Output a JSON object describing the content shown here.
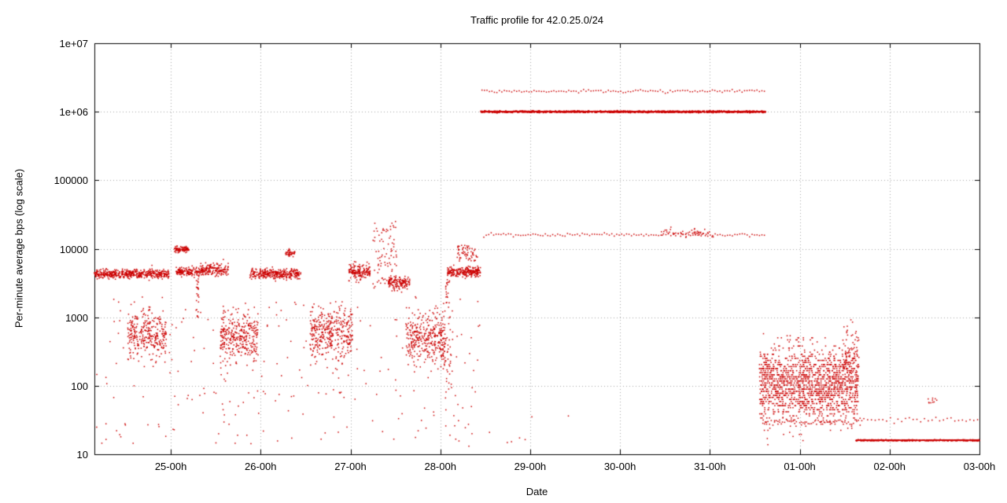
{
  "chart_data": {
    "type": "scatter",
    "title": "Traffic profile for 42.0.25.0/24",
    "xlabel": "Date",
    "ylabel": "Per-minute average bps (log scale)",
    "grid": "dotted",
    "legend": "none",
    "point_color": "#cc0000",
    "grid_color": "#a8a8a8",
    "border_color": "#000000",
    "background_color": "#ffffff",
    "y_axis": {
      "scale": "log",
      "min": 10,
      "max": 10000000,
      "ticks": [
        {
          "v": 10,
          "label": "10"
        },
        {
          "v": 100,
          "label": "100"
        },
        {
          "v": 1000,
          "label": "1000"
        },
        {
          "v": 10000,
          "label": "10000"
        },
        {
          "v": 100000,
          "label": "100000"
        },
        {
          "v": 1000000,
          "label": "1e+06"
        },
        {
          "v": 10000000,
          "label": "1e+07"
        }
      ]
    },
    "x_axis": {
      "unit": "days-from-25-00h",
      "min": -0.85,
      "max": 9.0,
      "ticks": [
        {
          "t": 0,
          "label": "25-00h"
        },
        {
          "t": 1,
          "label": "26-00h"
        },
        {
          "t": 2,
          "label": "27-00h"
        },
        {
          "t": 3,
          "label": "28-00h"
        },
        {
          "t": 4,
          "label": "29-00h"
        },
        {
          "t": 5,
          "label": "30-00h"
        },
        {
          "t": 6,
          "label": "31-00h"
        },
        {
          "t": 7,
          "label": "01-00h"
        },
        {
          "t": 8,
          "label": "02-00h"
        },
        {
          "t": 9,
          "label": "03-00h"
        }
      ]
    },
    "segments": [
      {
        "name": "band-4300-day1",
        "t0": -0.85,
        "t1": -0.02,
        "n": 480,
        "dist": "normal",
        "log_mean": 3.633,
        "log_sd": 0.032,
        "spacing": "random"
      },
      {
        "name": "blob-10k-day2",
        "t0": 0.04,
        "t1": 0.2,
        "n": 90,
        "dist": "normal",
        "log_mean": 3.991,
        "log_sd": 0.022,
        "spacing": "random"
      },
      {
        "name": "band-4600-day2a",
        "t0": 0.06,
        "t1": 0.32,
        "n": 150,
        "dist": "normal",
        "log_mean": 3.663,
        "log_sd": 0.03,
        "spacing": "random"
      },
      {
        "name": "band-4900-day2b",
        "t0": 0.32,
        "t1": 0.64,
        "n": 180,
        "dist": "normal",
        "log_mean": 3.69,
        "log_sd": 0.045,
        "spacing": "random"
      },
      {
        "name": "band-4300-day3",
        "t0": 0.88,
        "t1": 1.45,
        "n": 320,
        "dist": "normal",
        "log_mean": 3.633,
        "log_sd": 0.038,
        "spacing": "random"
      },
      {
        "name": "blob-9k-day3",
        "t0": 1.27,
        "t1": 1.38,
        "n": 40,
        "dist": "normal",
        "log_mean": 3.944,
        "log_sd": 0.028,
        "spacing": "random"
      },
      {
        "name": "band-4600-day4a",
        "t0": 1.98,
        "t1": 2.22,
        "n": 160,
        "dist": "normal",
        "log_mean": 3.663,
        "log_sd": 0.065,
        "spacing": "random"
      },
      {
        "name": "spike-cluster-25k-day4",
        "t0": 2.25,
        "t1": 2.52,
        "n": 90,
        "dist": "uniform",
        "log_min": 3.42,
        "log_max": 4.4,
        "spacing": "random"
      },
      {
        "name": "band-3200-day4b",
        "t0": 2.42,
        "t1": 2.66,
        "n": 140,
        "dist": "normal",
        "log_mean": 3.505,
        "log_sd": 0.045,
        "spacing": "random"
      },
      {
        "name": "band-4600-day5",
        "t0": 3.08,
        "t1": 3.45,
        "n": 240,
        "dist": "normal",
        "log_mean": 3.663,
        "log_sd": 0.038,
        "spacing": "random"
      },
      {
        "name": "blob-10k-day5",
        "t0": 3.18,
        "t1": 3.42,
        "n": 60,
        "dist": "uniform",
        "log_min": 3.82,
        "log_max": 4.05,
        "spacing": "random"
      },
      {
        "name": "cloud-600-day1",
        "t0": -0.48,
        "t1": -0.05,
        "n": 300,
        "dist": "normal",
        "log_mean": 2.75,
        "log_sd": 0.17,
        "spacing": "random"
      },
      {
        "name": "cloud-600-day2",
        "t0": 0.55,
        "t1": 0.97,
        "n": 330,
        "dist": "normal",
        "log_mean": 2.72,
        "log_sd": 0.17,
        "spacing": "random"
      },
      {
        "name": "cloud-600-day3",
        "t0": 1.55,
        "t1": 2.02,
        "n": 360,
        "dist": "normal",
        "log_mean": 2.76,
        "log_sd": 0.19,
        "spacing": "random"
      },
      {
        "name": "cloud-600-day4",
        "t0": 2.62,
        "t1": 3.05,
        "n": 330,
        "dist": "normal",
        "log_mean": 2.7,
        "log_sd": 0.18,
        "spacing": "random"
      },
      {
        "name": "cloud-tail-day5",
        "t0": 3.0,
        "t1": 3.14,
        "n": 60,
        "dist": "normal",
        "log_mean": 2.55,
        "log_sd": 0.25,
        "spacing": "random"
      },
      {
        "name": "background-sparse",
        "t0": -0.85,
        "t1": 3.45,
        "n": 260,
        "dist": "uniform",
        "log_min": 1.15,
        "log_max": 3.3,
        "spacing": "random"
      },
      {
        "name": "streak-day2",
        "t0": 0.28,
        "t1": 0.31,
        "n": 22,
        "dist": "uniform",
        "log_min": 3.0,
        "log_max": 3.62,
        "spacing": "random"
      },
      {
        "name": "streak-day5",
        "t0": 3.06,
        "t1": 3.1,
        "n": 18,
        "dist": "uniform",
        "log_min": 3.2,
        "log_max": 3.55,
        "spacing": "random"
      },
      {
        "name": "line-1e6",
        "t0": 3.45,
        "t1": 6.62,
        "n": 1700,
        "dist": "normal",
        "log_mean": 6.0,
        "log_sd": 0.006,
        "spacing": "random"
      },
      {
        "name": "dotted-row-2e6",
        "t0": 3.45,
        "t1": 6.62,
        "n": 115,
        "dist": "normal",
        "log_mean": 6.301,
        "log_sd": 0.01,
        "spacing": "even"
      },
      {
        "name": "dotted-row-16k",
        "t0": 3.47,
        "t1": 6.62,
        "n": 115,
        "dist": "normal",
        "log_mean": 4.204,
        "log_sd": 0.012,
        "spacing": "even"
      },
      {
        "name": "fuzz-17k",
        "t0": 5.45,
        "t1": 6.05,
        "n": 50,
        "dist": "normal",
        "log_mean": 4.23,
        "log_sd": 0.03,
        "spacing": "random"
      },
      {
        "name": "bottom-strays-mid",
        "t0": 3.3,
        "t1": 4.6,
        "n": 8,
        "dist": "uniform",
        "log_min": 1.1,
        "log_max": 1.6,
        "spacing": "random"
      },
      {
        "name": "cloud-late-100",
        "t0": 6.55,
        "t1": 7.65,
        "n": 1600,
        "dist": "normal",
        "log_mean": 2.02,
        "log_sd": 0.27,
        "spacing": "random",
        "log_quant": 0.03
      },
      {
        "name": "cloud-late-rise",
        "t0": 7.48,
        "t1": 7.66,
        "n": 90,
        "dist": "normal",
        "log_mean": 2.45,
        "log_sd": 0.22,
        "spacing": "random"
      },
      {
        "name": "row-30-late",
        "t0": 6.58,
        "t1": 7.7,
        "n": 60,
        "dist": "normal",
        "log_mean": 1.477,
        "log_sd": 0.03,
        "spacing": "even"
      },
      {
        "name": "line-16",
        "t0": 7.62,
        "t1": 9.0,
        "n": 650,
        "dist": "normal",
        "log_mean": 1.204,
        "log_sd": 0.004,
        "spacing": "random"
      },
      {
        "name": "dotted-row-32",
        "t0": 7.65,
        "t1": 9.0,
        "n": 32,
        "dist": "normal",
        "log_mean": 1.505,
        "log_sd": 0.018,
        "spacing": "even"
      },
      {
        "name": "dots-60-late",
        "t0": 8.42,
        "t1": 8.54,
        "n": 10,
        "dist": "normal",
        "log_mean": 1.78,
        "log_sd": 0.03,
        "spacing": "random"
      }
    ]
  }
}
